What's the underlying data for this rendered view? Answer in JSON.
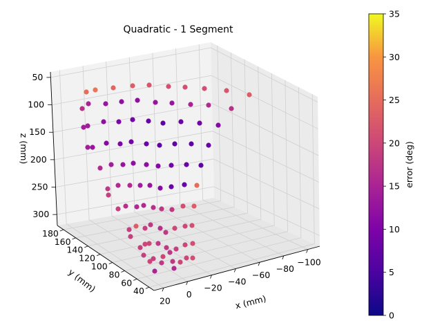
{
  "chart_data": {
    "type": "scatter3d",
    "title": "Quadratic - 1 Segment",
    "xlabel": "x (mm)",
    "ylabel": "y (mm)",
    "zlabel": "z (mm)",
    "colorbar_label": "error (deg)",
    "colormap": "plasma",
    "clim": [
      0,
      35
    ],
    "colorbar_ticks": [
      0,
      5,
      10,
      15,
      20,
      25,
      30,
      35
    ],
    "x_ticks": [
      20,
      0,
      -20,
      -40,
      -60,
      -80,
      -100
    ],
    "y_ticks": [
      40,
      60,
      80,
      100,
      120,
      140,
      160,
      180
    ],
    "z_ticks": [
      50,
      100,
      150,
      200,
      250,
      300
    ],
    "grid": true,
    "points_uv": [
      [
        125,
        133,
        25
      ],
      [
        138,
        130,
        26
      ],
      [
        164,
        127,
        24
      ],
      [
        192,
        124,
        23
      ],
      [
        216,
        123,
        22
      ],
      [
        244,
        125,
        21
      ],
      [
        268,
        126,
        21
      ],
      [
        296,
        128,
        21
      ],
      [
        328,
        131,
        22
      ],
      [
        361,
        137,
        23
      ],
      [
        119,
        157,
        17
      ],
      [
        128,
        150,
        15
      ],
      [
        153,
        150,
        13
      ],
      [
        176,
        147,
        12
      ],
      [
        199,
        145,
        12
      ],
      [
        225,
        148,
        13
      ],
      [
        249,
        149,
        13
      ],
      [
        276,
        151,
        15
      ],
      [
        302,
        152,
        16
      ],
      [
        335,
        157,
        17
      ],
      [
        121,
        184,
        14
      ],
      [
        127,
        182,
        14
      ],
      [
        150,
        176,
        12
      ],
      [
        172,
        176,
        10
      ],
      [
        192,
        173,
        9
      ],
      [
        215,
        175,
        8
      ],
      [
        236,
        178,
        7
      ],
      [
        262,
        176,
        8
      ],
      [
        289,
        178,
        9
      ],
      [
        316,
        181,
        11
      ],
      [
        127,
        213,
        14
      ],
      [
        134,
        213,
        13
      ],
      [
        154,
        207,
        11
      ],
      [
        174,
        208,
        10
      ],
      [
        190,
        205,
        9
      ],
      [
        212,
        208,
        8
      ],
      [
        231,
        210,
        7
      ],
      [
        253,
        208,
        7
      ],
      [
        277,
        208,
        7
      ],
      [
        302,
        210,
        8
      ],
      [
        145,
        243,
        16
      ],
      [
        161,
        238,
        14
      ],
      [
        178,
        238,
        13
      ],
      [
        193,
        236,
        12
      ],
      [
        212,
        238,
        12
      ],
      [
        229,
        240,
        11
      ],
      [
        248,
        239,
        9
      ],
      [
        270,
        238,
        8
      ],
      [
        291,
        239,
        7
      ],
      [
        156,
        273,
        18
      ],
      [
        157,
        282,
        19
      ],
      [
        171,
        268,
        16
      ],
      [
        188,
        268,
        16
      ],
      [
        203,
        268,
        14
      ],
      [
        217,
        268,
        13
      ],
      [
        232,
        272,
        11
      ],
      [
        248,
        270,
        8
      ],
      [
        267,
        267,
        8
      ],
      [
        285,
        268,
        25
      ],
      [
        171,
        302,
        19
      ],
      [
        182,
        298,
        17
      ],
      [
        198,
        299,
        16
      ],
      [
        208,
        297,
        16
      ],
      [
        222,
        300,
        17
      ],
      [
        234,
        302,
        18
      ],
      [
        249,
        303,
        18
      ],
      [
        265,
        298,
        21
      ],
      [
        281,
        298,
        23
      ],
      [
        187,
        332,
        19
      ],
      [
        197,
        327,
        23
      ],
      [
        210,
        330,
        19
      ],
      [
        218,
        325,
        18
      ],
      [
        232,
        330,
        17
      ],
      [
        240,
        336,
        18
      ],
      [
        253,
        330,
        20
      ],
      [
        268,
        327,
        20
      ],
      [
        278,
        326,
        21
      ],
      [
        189,
        342,
        19
      ],
      [
        203,
        358,
        19
      ],
      [
        210,
        353,
        20
      ],
      [
        216,
        352,
        20
      ],
      [
        229,
        352,
        18
      ],
      [
        241,
        358,
        18
      ],
      [
        255,
        360,
        19
      ],
      [
        268,
        354,
        20
      ],
      [
        279,
        352,
        21
      ],
      [
        208,
        369,
        19
      ],
      [
        217,
        378,
        20
      ],
      [
        222,
        374,
        19
      ],
      [
        236,
        371,
        20
      ],
      [
        246,
        365,
        18
      ],
      [
        261,
        379,
        20
      ],
      [
        270,
        373,
        20
      ],
      [
        279,
        373,
        21
      ],
      [
        224,
        392,
        15
      ],
      [
        234,
        380,
        18
      ],
      [
        250,
        378,
        18
      ],
      [
        252,
        388,
        16
      ]
    ]
  }
}
